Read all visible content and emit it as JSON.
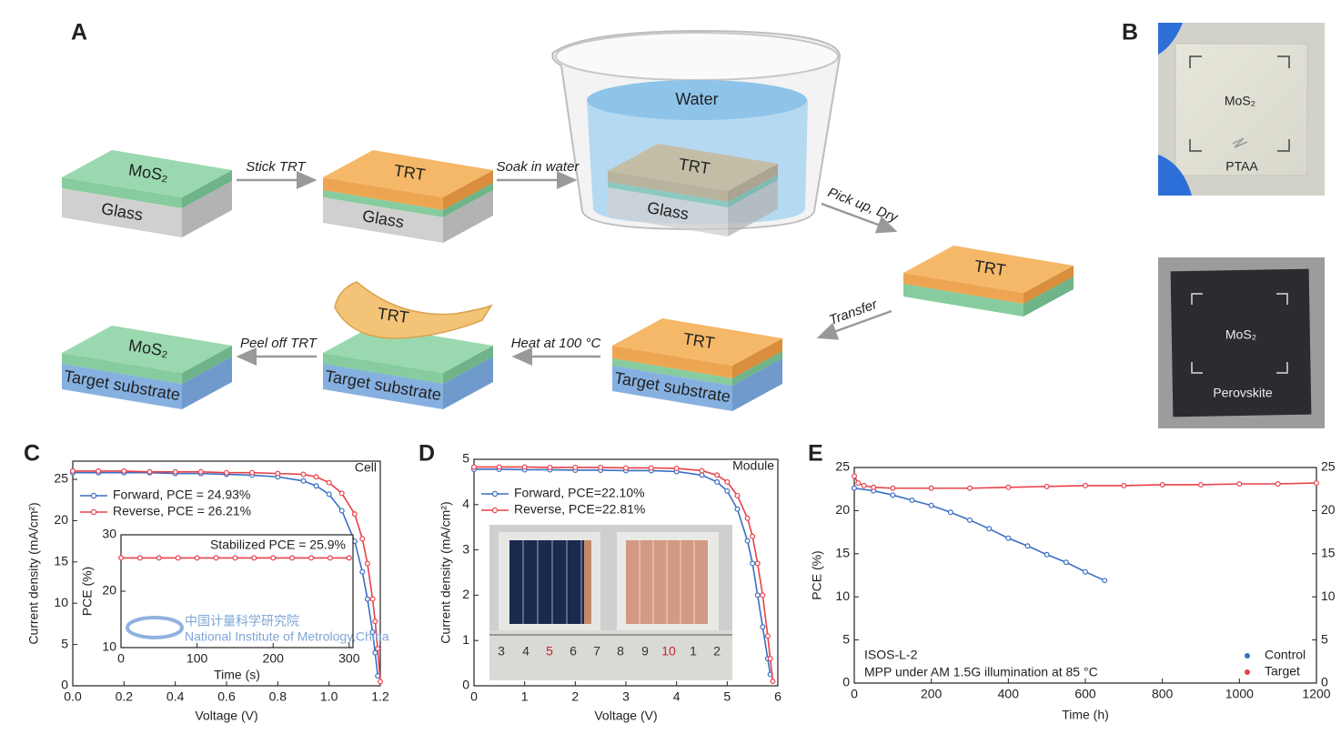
{
  "panel_labels": [
    "A",
    "B",
    "C",
    "D",
    "E"
  ],
  "diagram": {
    "arrows": [
      "Stick TRT",
      "Soak in water",
      "Pick up, Dry",
      "Transfer",
      "Heat at 100 °C",
      "Peel off TRT"
    ],
    "layers": {
      "mos2": "MoS₂",
      "glass": "Glass",
      "trt": "TRT",
      "target": "Target substrate",
      "water": "Water"
    }
  },
  "photos": {
    "top": [
      "MoS₂",
      "PTAA"
    ],
    "bottom": [
      "MoS₂",
      "Perovskite"
    ]
  },
  "chart_data": [
    {
      "type": "line",
      "corner_label": "Cell",
      "x_label": "Voltage (V)",
      "y_label": "Current density (mA/cm²)",
      "xlim": [
        0,
        1.2
      ],
      "ylim": [
        0,
        27.2
      ],
      "xticks": [
        {
          "value": 0,
          "label": "0.0"
        },
        0.2,
        0.4,
        0.6,
        0.8,
        {
          "value": 1,
          "label": "1.0"
        },
        1.2
      ],
      "yticks": [
        0,
        5,
        10,
        15,
        20,
        25
      ],
      "legend": "upper left",
      "series": [
        {
          "name": "Forward, PCE = 24.93%",
          "color": "#3a6fc4",
          "x": [
            0,
            0.1,
            0.2,
            0.3,
            0.4,
            0.5,
            0.6,
            0.7,
            0.8,
            0.9,
            0.95,
            1.0,
            1.05,
            1.1,
            1.13,
            1.15,
            1.17,
            1.18,
            1.19
          ],
          "values": [
            25.8,
            25.8,
            25.8,
            25.8,
            25.7,
            25.7,
            25.6,
            25.5,
            25.3,
            24.8,
            24.2,
            23.2,
            21.2,
            17.5,
            13.8,
            10.5,
            6.5,
            4.0,
            1.2
          ]
        },
        {
          "name": "Reverse, PCE = 26.21%",
          "color": "#e8414a",
          "x": [
            0,
            0.1,
            0.2,
            0.3,
            0.4,
            0.5,
            0.6,
            0.7,
            0.8,
            0.9,
            0.95,
            1.0,
            1.05,
            1.1,
            1.13,
            1.15,
            1.17,
            1.18,
            1.19,
            1.2
          ],
          "values": [
            26.0,
            26.0,
            26.0,
            25.9,
            25.9,
            25.9,
            25.8,
            25.8,
            25.7,
            25.6,
            25.3,
            24.6,
            23.3,
            20.8,
            17.8,
            14.8,
            10.5,
            7.8,
            4.5,
            0.5
          ]
        }
      ],
      "inset": {
        "type": "line",
        "annotation": "Stabilized PCE = 25.9%",
        "watermark": [
          "中国计量科学研究院",
          "National Institute of Metrology,China"
        ],
        "x_label": "Time (s)",
        "y_label": "PCE (%)",
        "xlim": [
          0,
          305
        ],
        "ylim": [
          10,
          30
        ],
        "xticks": [
          0,
          100,
          200,
          300
        ],
        "yticks": [
          10,
          20,
          30
        ],
        "series": [
          {
            "color": "#e8414a",
            "x": [
              0,
              25,
              50,
              75,
              100,
              125,
              150,
              175,
              200,
              225,
              250,
              275,
              300
            ],
            "values": [
              25.9,
              25.9,
              25.9,
              25.9,
              25.9,
              25.9,
              25.9,
              25.9,
              25.9,
              25.9,
              25.9,
              25.9,
              25.9
            ]
          }
        ]
      }
    },
    {
      "type": "line",
      "corner_label": "Module",
      "x_label": "Voltage (V)",
      "y_label": "Current density (mA/cm²)",
      "xlim": [
        0,
        6
      ],
      "ylim": [
        0,
        5
      ],
      "xticks": [
        0,
        1,
        2,
        3,
        4,
        5,
        6
      ],
      "yticks": [
        0,
        1,
        2,
        3,
        4,
        5
      ],
      "legend": "upper left",
      "series": [
        {
          "name": "Forward, PCE=22.10%",
          "color": "#3a6fc4",
          "x": [
            0,
            0.5,
            1,
            1.5,
            2,
            2.5,
            3,
            3.5,
            4,
            4.5,
            4.8,
            5.0,
            5.2,
            5.4,
            5.5,
            5.6,
            5.7,
            5.8,
            5.85
          ],
          "values": [
            4.78,
            4.78,
            4.77,
            4.77,
            4.76,
            4.76,
            4.75,
            4.75,
            4.73,
            4.65,
            4.5,
            4.3,
            3.9,
            3.2,
            2.7,
            2.0,
            1.3,
            0.6,
            0.25
          ]
        },
        {
          "name": "Reverse, PCE=22.81%",
          "color": "#e8414a",
          "x": [
            0,
            0.5,
            1,
            1.5,
            2,
            2.5,
            3,
            3.5,
            4,
            4.5,
            4.8,
            5.0,
            5.2,
            5.4,
            5.5,
            5.6,
            5.7,
            5.8,
            5.85,
            5.9
          ],
          "values": [
            4.83,
            4.83,
            4.83,
            4.82,
            4.82,
            4.82,
            4.81,
            4.81,
            4.8,
            4.75,
            4.65,
            4.5,
            4.2,
            3.7,
            3.3,
            2.7,
            2.0,
            1.1,
            0.6,
            0.1
          ]
        }
      ],
      "inset_photo": {
        "ruler": [
          "3",
          "4",
          "5",
          "6",
          "7",
          "8",
          "9",
          "10",
          "1",
          "2"
        ]
      }
    },
    {
      "type": "line",
      "annotations": [
        "ISOS-L-2",
        "MPP under AM 1.5G illumination at 85 °C"
      ],
      "x_label": "Time (h)",
      "y_label": "PCE (%)",
      "xlim": [
        0,
        1200
      ],
      "ylim": [
        0,
        25
      ],
      "y2lim": [
        0,
        25
      ],
      "xticks": [
        0,
        200,
        400,
        600,
        800,
        1000,
        1200
      ],
      "yticks": [
        0,
        5,
        10,
        15,
        20,
        25
      ],
      "y2ticks": [
        0,
        5,
        10,
        15,
        20,
        25
      ],
      "legend": "lower right",
      "series": [
        {
          "name": "Control",
          "color": "#3a6fc4",
          "x": [
            0,
            50,
            100,
            150,
            200,
            250,
            300,
            350,
            400,
            450,
            500,
            550,
            600,
            650
          ],
          "values": [
            22.6,
            22.3,
            21.8,
            21.2,
            20.6,
            19.8,
            18.9,
            17.9,
            16.8,
            15.9,
            14.9,
            14.0,
            12.9,
            11.9
          ]
        },
        {
          "name": "Target",
          "color": "#e8414a",
          "x": [
            0,
            10,
            25,
            50,
            100,
            200,
            300,
            400,
            500,
            600,
            700,
            800,
            900,
            1000,
            1100,
            1200
          ],
          "values": [
            24.0,
            23.2,
            22.9,
            22.7,
            22.6,
            22.6,
            22.6,
            22.7,
            22.8,
            22.9,
            22.9,
            23.0,
            23.0,
            23.1,
            23.1,
            23.2
          ]
        }
      ]
    }
  ]
}
